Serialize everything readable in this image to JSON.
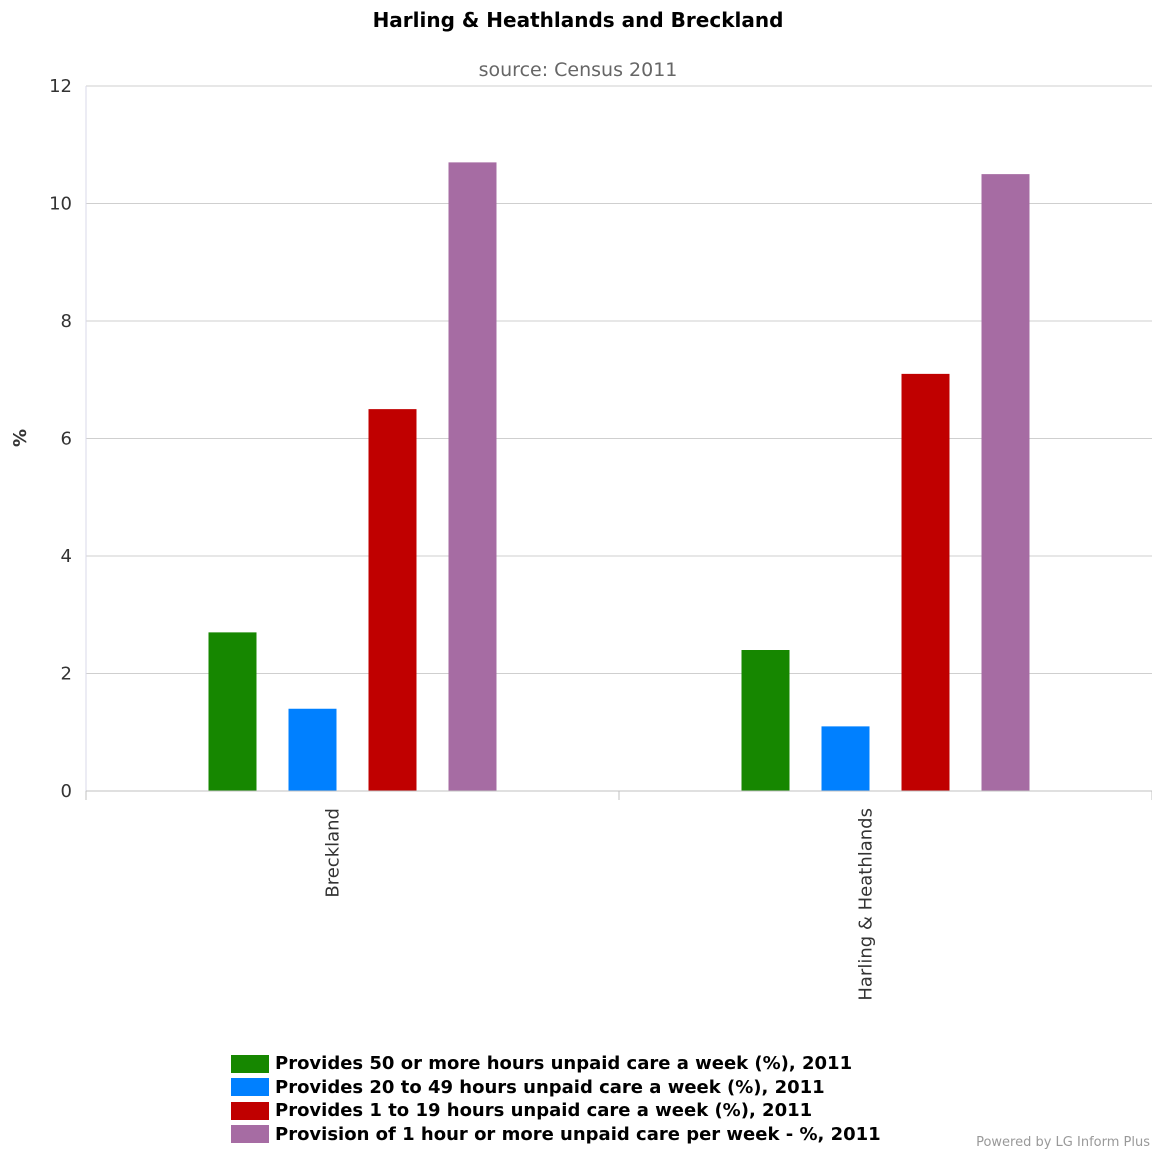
{
  "chart_data": {
    "type": "bar",
    "title": "Harling & Heathlands and Breckland",
    "subtitle": "source: Census 2011",
    "ylabel": "%",
    "xlabel": "",
    "ylim": [
      0,
      12
    ],
    "yticks": [
      0,
      2,
      4,
      6,
      8,
      10,
      12
    ],
    "grid": true,
    "legend_position": "bottom",
    "categories": [
      "Breckland",
      "Harling & Heathlands"
    ],
    "series": [
      {
        "name": "Provides 50 or more hours unpaid care a week (%), 2011",
        "color": "#168700",
        "values": [
          2.7,
          2.4
        ]
      },
      {
        "name": "Provides 20 to 49 hours unpaid care a week (%), 2011",
        "color": "#0080ff",
        "values": [
          1.4,
          1.1
        ]
      },
      {
        "name": "Provides 1 to 19 hours unpaid care a week (%), 2011",
        "color": "#c00000",
        "values": [
          6.5,
          7.1
        ]
      },
      {
        "name": "Provision of 1 hour or more unpaid care per week - %, 2011",
        "color": "#a66ca3",
        "values": [
          10.7,
          10.5
        ]
      }
    ]
  },
  "credit": "Powered by LG Inform Plus"
}
